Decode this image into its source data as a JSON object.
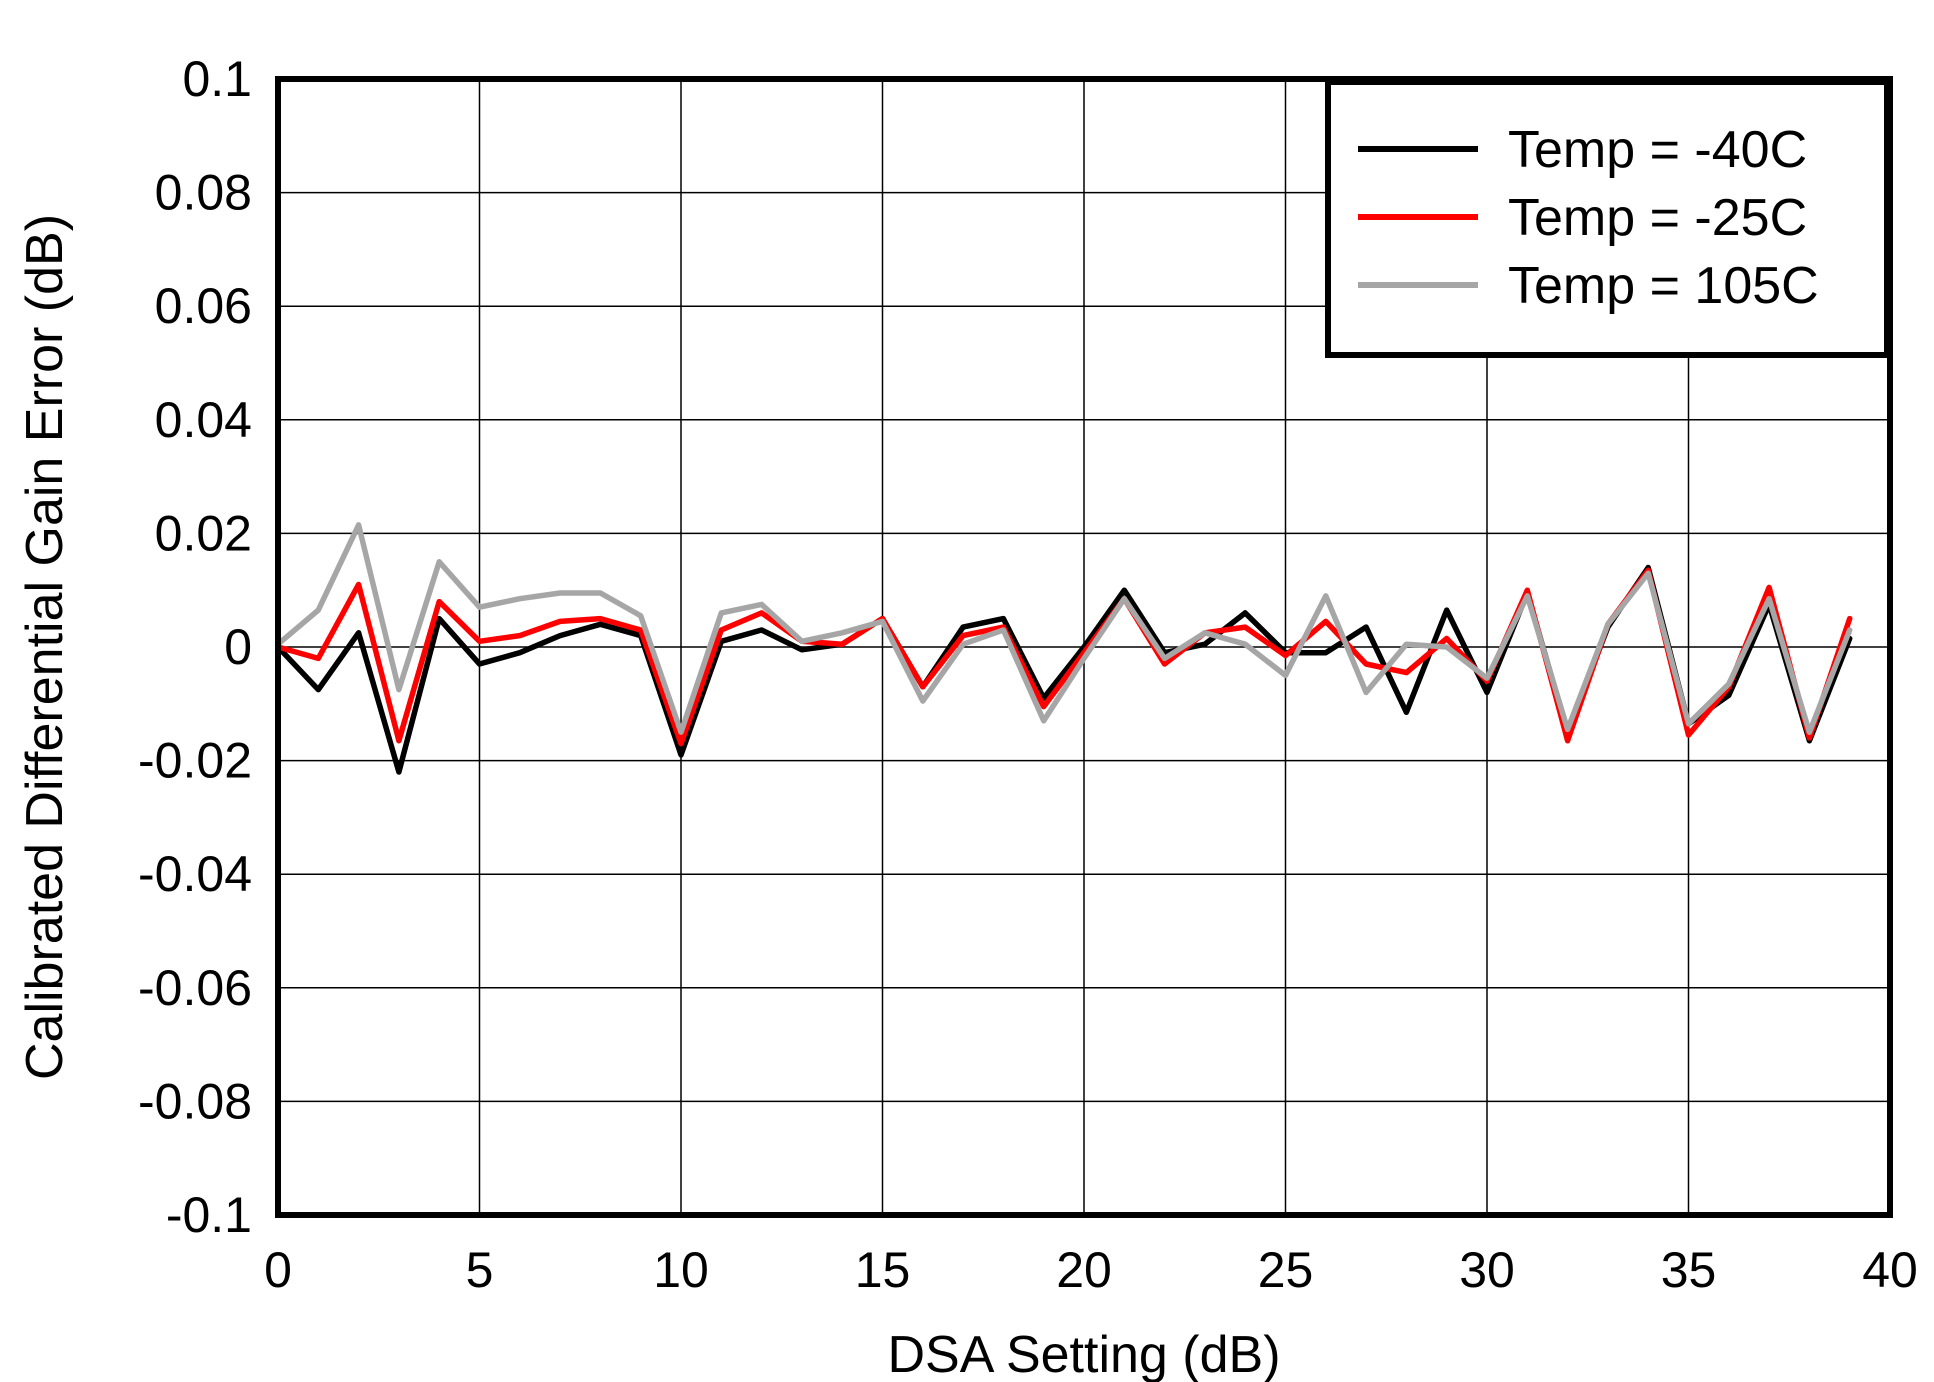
{
  "chart_data": {
    "type": "line",
    "title": "",
    "xlabel": "DSA Setting (dB)",
    "ylabel": "Calibrated Differential Gain Error (dB)",
    "xlim": [
      0,
      40
    ],
    "ylim": [
      -0.1,
      0.1
    ],
    "xticks": [
      0,
      5,
      10,
      15,
      20,
      25,
      30,
      35,
      40
    ],
    "yticks": [
      -0.1,
      -0.08,
      -0.06,
      -0.04,
      -0.02,
      0,
      0.02,
      0.04,
      0.06,
      0.08,
      0.1
    ],
    "xtick_labels": [
      "0",
      "5",
      "10",
      "15",
      "20",
      "25",
      "30",
      "35",
      "40"
    ],
    "ytick_labels": [
      "-0.1",
      "-0.08",
      "-0.06",
      "-0.04",
      "-0.02",
      "0",
      "0.02",
      "0.04",
      "0.06",
      "0.08",
      "0.1"
    ],
    "grid": true,
    "legend_position": "top-right",
    "x": [
      0,
      1,
      2,
      3,
      4,
      5,
      6,
      7,
      8,
      9,
      10,
      11,
      12,
      13,
      14,
      15,
      16,
      17,
      18,
      19,
      20,
      21,
      22,
      23,
      24,
      25,
      26,
      27,
      28,
      29,
      30,
      31,
      32,
      33,
      34,
      35,
      36,
      37,
      38,
      39
    ],
    "series": [
      {
        "name": "Temp = -40C",
        "color": "#000000",
        "values": [
          0,
          -0.0075,
          0.0025,
          -0.022,
          0.005,
          -0.003,
          -0.001,
          0.002,
          0.004,
          0.002,
          -0.019,
          0.001,
          0.003,
          -0.0005,
          0.0005,
          0.005,
          -0.007,
          0.0035,
          0.005,
          -0.009,
          0,
          0.01,
          -0.001,
          0.0005,
          0.006,
          -0.001,
          -0.001,
          0.0035,
          -0.0115,
          0.0065,
          -0.008,
          0.0095,
          -0.015,
          0.0035,
          0.014,
          -0.0135,
          -0.0085,
          0.0075,
          -0.0165,
          0.0015
        ]
      },
      {
        "name": "Temp = -25C",
        "color": "#ff0000",
        "values": [
          0,
          -0.002,
          0.011,
          -0.0165,
          0.008,
          0.001,
          0.002,
          0.0045,
          0.005,
          0.003,
          -0.017,
          0.003,
          0.006,
          0.001,
          0.0005,
          0.005,
          -0.007,
          0.002,
          0.0035,
          -0.0105,
          -0.001,
          0.0085,
          -0.003,
          0.0025,
          0.0035,
          -0.0015,
          0.0045,
          -0.003,
          -0.0045,
          0.0015,
          -0.006,
          0.01,
          -0.0165,
          0.004,
          0.0135,
          -0.0155,
          -0.007,
          0.0105,
          -0.016,
          0.005
        ]
      },
      {
        "name": "Temp = 105C",
        "color": "#a6a6a6",
        "values": [
          0.0005,
          0.0065,
          0.0215,
          -0.0075,
          0.015,
          0.007,
          0.0085,
          0.0095,
          0.0095,
          0.0055,
          -0.015,
          0.006,
          0.0075,
          0.001,
          0.0025,
          0.0045,
          -0.0095,
          0.0005,
          0.003,
          -0.013,
          -0.002,
          0.0085,
          -0.002,
          0.0025,
          0.0005,
          -0.005,
          0.009,
          -0.008,
          0.0005,
          0,
          -0.0055,
          0.009,
          -0.0145,
          0.004,
          0.013,
          -0.0135,
          -0.0065,
          0.0085,
          -0.015,
          0.003
        ]
      }
    ]
  }
}
